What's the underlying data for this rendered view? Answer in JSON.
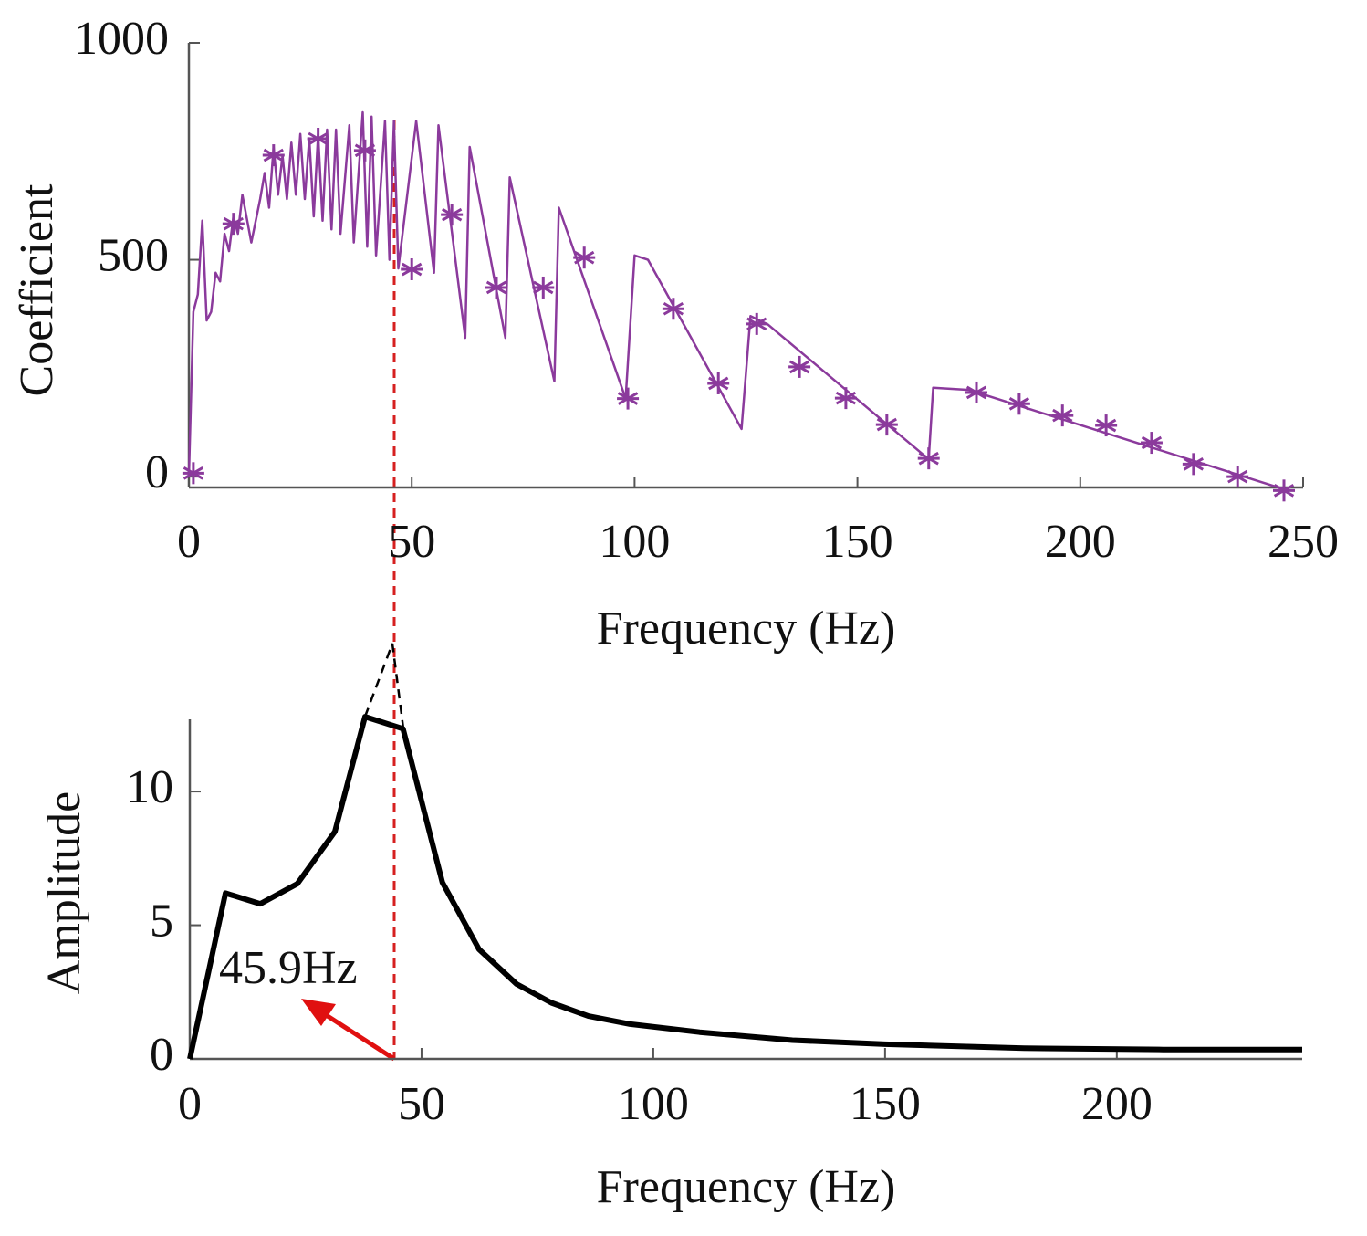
{
  "chart_data": [
    {
      "type": "line",
      "xlabel": "Frequency (Hz)",
      "ylabel": "Coefficient",
      "xlim": [
        0,
        250
      ],
      "ylim": [
        -25,
        1000
      ],
      "xticks": [
        0,
        50,
        100,
        150,
        200,
        250
      ],
      "yticks": [
        0,
        500,
        1000
      ],
      "series": [
        {
          "style": "line",
          "color": "#8b3a9c",
          "x": [
            0,
            1,
            2,
            3,
            4,
            5,
            6,
            7,
            8,
            9,
            10,
            11,
            12,
            14,
            16,
            17,
            18,
            19,
            20,
            21,
            22,
            23,
            24,
            25,
            26,
            27,
            28,
            29,
            30,
            31,
            32,
            33,
            34,
            36,
            37,
            39,
            40,
            41,
            42,
            44,
            45,
            46,
            47,
            51,
            55,
            56,
            62,
            63,
            71,
            72,
            82,
            83,
            98,
            100,
            103,
            124,
            126,
            130,
            166,
            167,
            175,
            246
          ],
          "values": [
            0,
            380,
            420,
            590,
            360,
            380,
            470,
            450,
            560,
            520,
            600,
            560,
            650,
            540,
            640,
            700,
            620,
            760,
            650,
            740,
            640,
            770,
            650,
            790,
            640,
            780,
            600,
            790,
            590,
            800,
            570,
            800,
            560,
            810,
            540,
            840,
            530,
            830,
            510,
            820,
            500,
            820,
            480,
            820,
            470,
            810,
            320,
            760,
            320,
            690,
            220,
            620,
            180,
            510,
            500,
            110,
            370,
            350,
            40,
            205,
            200,
            -30
          ]
        },
        {
          "style": "markers",
          "color": "#8b3a9c",
          "x": [
            1,
            10,
            19,
            29,
            39.5,
            50,
            59,
            69,
            79.5,
            88.7,
            98.5,
            108.7,
            118.8,
            127.4,
            137,
            147.4,
            156.6,
            166,
            176.7,
            186.3,
            196,
            205.8,
            216,
            225.4,
            235.3,
            245.7
          ],
          "values": [
            8,
            583,
            741,
            779,
            752,
            478,
            604,
            436,
            436,
            505,
            180,
            387,
            215,
            352,
            253,
            181,
            120,
            42,
            194,
            168,
            141,
            118,
            78,
            29,
            0,
            -32
          ]
        }
      ]
    },
    {
      "type": "line",
      "xlabel": "Frequency (Hz)",
      "ylabel": "Amplitude",
      "xlim": [
        0,
        240
      ],
      "ylim": [
        0,
        12.7
      ],
      "xticks": [
        0,
        50,
        100,
        150,
        200
      ],
      "yticks": [
        0,
        5,
        10
      ],
      "annotations": [
        {
          "text": "45.9Hz"
        }
      ],
      "series": [
        {
          "style": "line",
          "color": "#000000",
          "x": [
            0,
            7.7,
            15.2,
            23.2,
            31.3,
            37.8,
            46,
            54.5,
            62.4,
            70.5,
            78,
            86,
            95,
            110,
            130,
            150,
            180,
            210,
            240
          ],
          "values": [
            0,
            6.2,
            5.8,
            6.55,
            8.5,
            12.8,
            12.35,
            6.6,
            4.1,
            2.8,
            2.1,
            1.6,
            1.3,
            1.0,
            0.7,
            0.55,
            0.4,
            0.35,
            0.35
          ]
        }
      ]
    }
  ]
}
